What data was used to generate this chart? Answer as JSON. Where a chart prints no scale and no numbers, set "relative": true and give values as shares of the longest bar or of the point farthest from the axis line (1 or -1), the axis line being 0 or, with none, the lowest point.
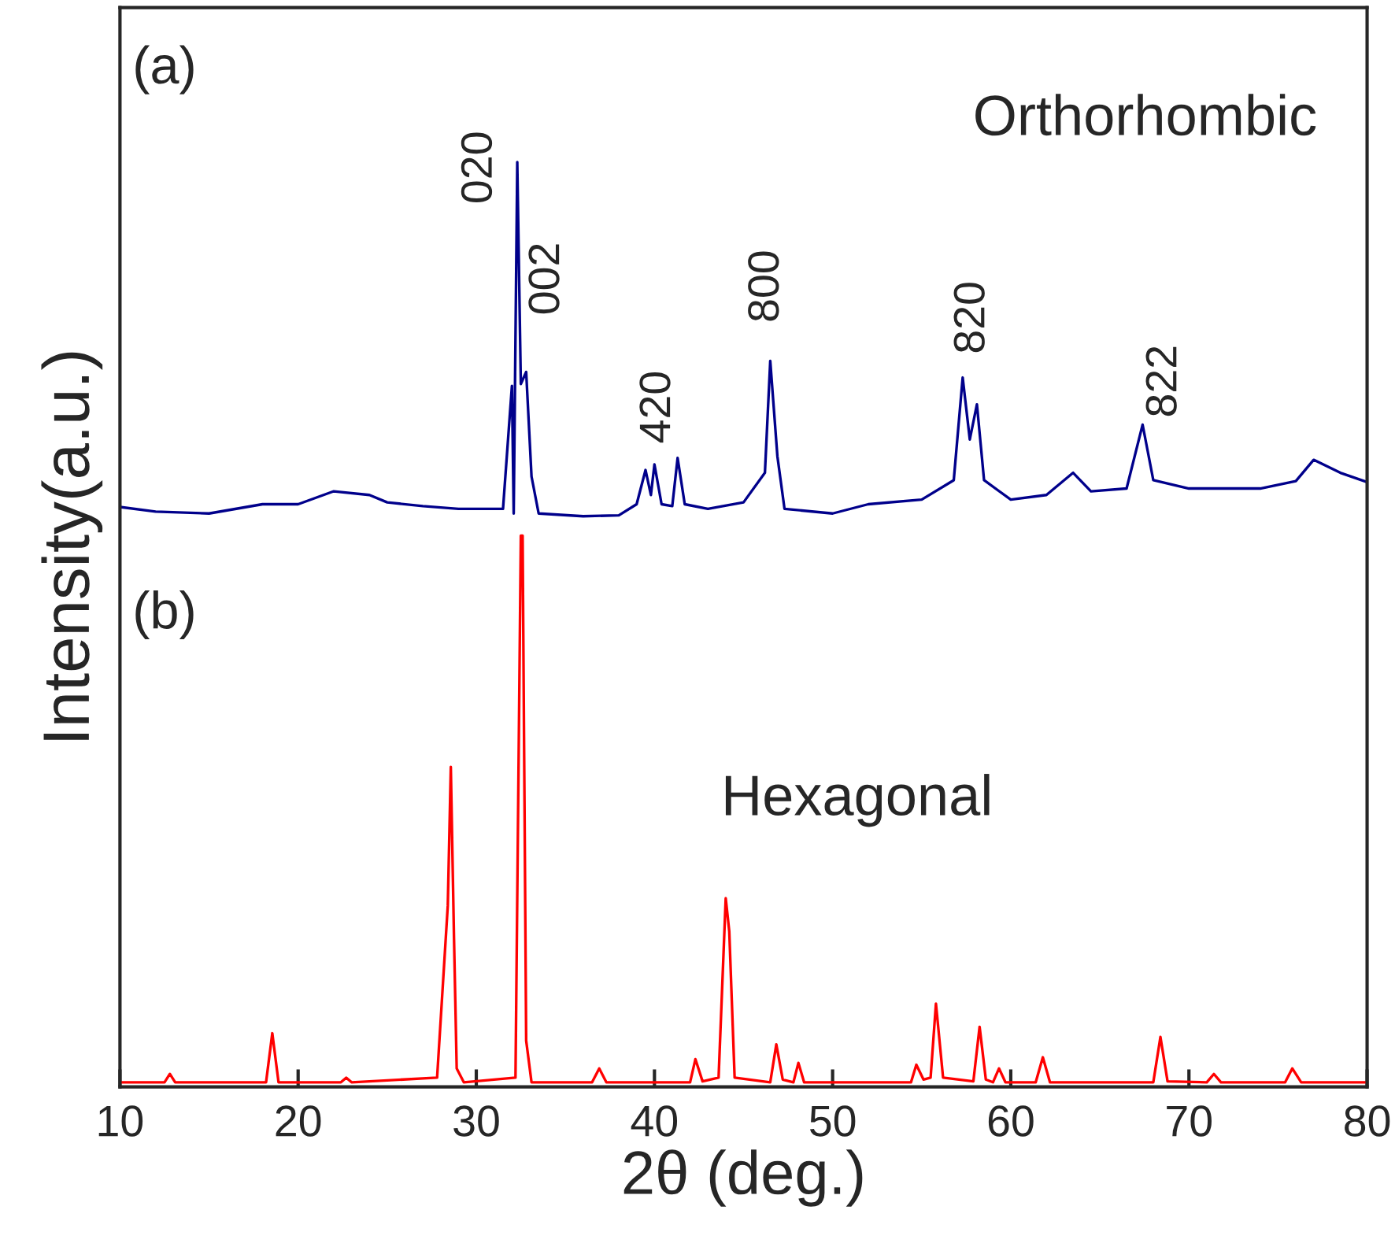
{
  "chart_data": {
    "type": "line",
    "relative": true,
    "xlabel": "2θ (deg.)",
    "ylabel": "Intensity(a.u.)",
    "xlim": [
      10,
      80
    ],
    "xticks": [
      10,
      20,
      30,
      40,
      50,
      60,
      70,
      80
    ],
    "tick_labels": "x",
    "grid": false,
    "marker": "none",
    "line_style": "solid",
    "series": [
      {
        "color": "#00008b",
        "x": [
          10,
          12,
          15,
          18,
          20,
          22,
          24,
          25,
          27,
          29,
          31.5,
          32.0,
          32.1,
          32.3,
          32.5,
          32.8,
          33.1,
          33.5,
          36,
          38,
          39.0,
          39.5,
          39.8,
          40.0,
          40.4,
          41.0,
          41.3,
          41.7,
          43,
          45,
          46.2,
          46.5,
          46.9,
          47.3,
          50,
          52,
          55,
          56.8,
          57.3,
          57.7,
          58.1,
          58.5,
          60,
          62,
          63.5,
          64.5,
          66.5,
          67.4,
          68,
          70,
          74,
          76,
          77,
          78.5,
          80
        ],
        "values": [
          0.627,
          0.622,
          0.62,
          0.63,
          0.63,
          0.644,
          0.64,
          0.632,
          0.628,
          0.625,
          0.625,
          0.758,
          0.62,
          1.0,
          0.76,
          0.773,
          0.66,
          0.62,
          0.617,
          0.618,
          0.63,
          0.667,
          0.64,
          0.673,
          0.63,
          0.628,
          0.68,
          0.63,
          0.625,
          0.632,
          0.664,
          0.785,
          0.682,
          0.625,
          0.62,
          0.63,
          0.635,
          0.656,
          0.767,
          0.7,
          0.738,
          0.656,
          0.635,
          0.64,
          0.664,
          0.644,
          0.647,
          0.716,
          0.656,
          0.647,
          0.647,
          0.655,
          0.678,
          0.664,
          0.654
        ]
      },
      {
        "color": "#ff0000",
        "x": [
          10,
          12.5,
          12.8,
          13.1,
          18.2,
          18.55,
          18.9,
          22.4,
          22.7,
          23.0,
          27.8,
          28.4,
          28.57,
          28.75,
          28.9,
          29.3,
          32.2,
          32.5,
          32.6,
          32.8,
          33.1,
          36.5,
          36.9,
          37.3,
          42.0,
          42.3,
          42.7,
          43.6,
          44.0,
          44.2,
          44.5,
          46.5,
          46.84,
          47.2,
          47.8,
          48.08,
          48.4,
          54.4,
          54.7,
          55.1,
          55.5,
          55.8,
          56.2,
          57.9,
          58.25,
          58.6,
          59.0,
          59.34,
          59.7,
          61.4,
          61.8,
          62.2,
          68.0,
          68.4,
          68.8,
          71.0,
          71.4,
          71.8,
          75.4,
          75.8,
          76.3,
          80
        ],
        "values": [
          0.005,
          0.005,
          0.014,
          0.005,
          0.005,
          0.058,
          0.005,
          0.005,
          0.01,
          0.005,
          0.01,
          0.196,
          0.346,
          0.16,
          0.02,
          0.005,
          0.01,
          0.596,
          0.596,
          0.05,
          0.005,
          0.005,
          0.02,
          0.005,
          0.005,
          0.03,
          0.006,
          0.01,
          0.204,
          0.168,
          0.01,
          0.005,
          0.046,
          0.008,
          0.005,
          0.026,
          0.005,
          0.005,
          0.024,
          0.008,
          0.01,
          0.09,
          0.01,
          0.006,
          0.065,
          0.008,
          0.005,
          0.02,
          0.005,
          0.005,
          0.032,
          0.005,
          0.005,
          0.054,
          0.006,
          0.005,
          0.014,
          0.005,
          0.005,
          0.02,
          0.005,
          0.005
        ]
      }
    ],
    "annotations": [
      "(a)",
      "Orthorhombic",
      "(b)",
      "Hexagonal",
      "020",
      "002",
      "420",
      "800",
      "820",
      "822"
    ]
  }
}
